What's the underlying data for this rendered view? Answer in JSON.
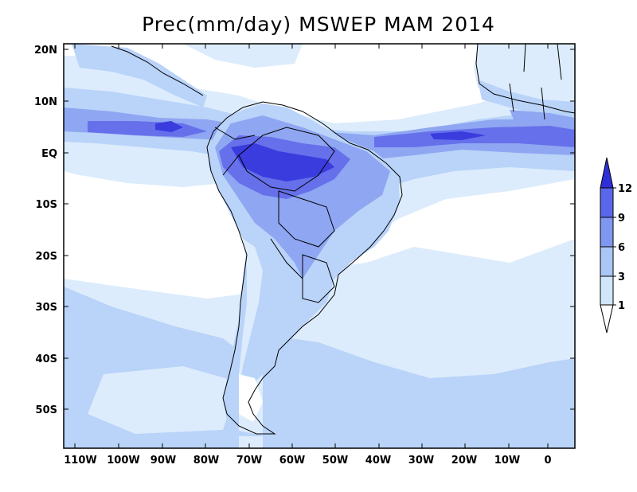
{
  "title": "Prec(mm/day) MSWEP MAM 2014",
  "map": {
    "lat_labels": [
      "20N",
      "10N",
      "EQ",
      "10S",
      "20S",
      "30S",
      "40S",
      "50S"
    ],
    "lon_labels": [
      "110W",
      "100W",
      "90W",
      "80W",
      "70W",
      "60W",
      "50W",
      "40W",
      "30W",
      "20W",
      "10W",
      "0"
    ]
  },
  "colorbar": {
    "unit": "mm/day",
    "levels": [
      "1",
      "3",
      "6",
      "9",
      "12"
    ],
    "colors": [
      "#cfe6fb",
      "#a9c6f7",
      "#8097f1",
      "#5b67ea",
      "#2f2fd9",
      "#1a1acb"
    ]
  },
  "precip_colors": {
    "very_light": "#dcecfc",
    "light": "#b9d3f9",
    "medium": "#8fa6f2",
    "heavy": "#6670ea",
    "very_heavy": "#3a3cde"
  }
}
